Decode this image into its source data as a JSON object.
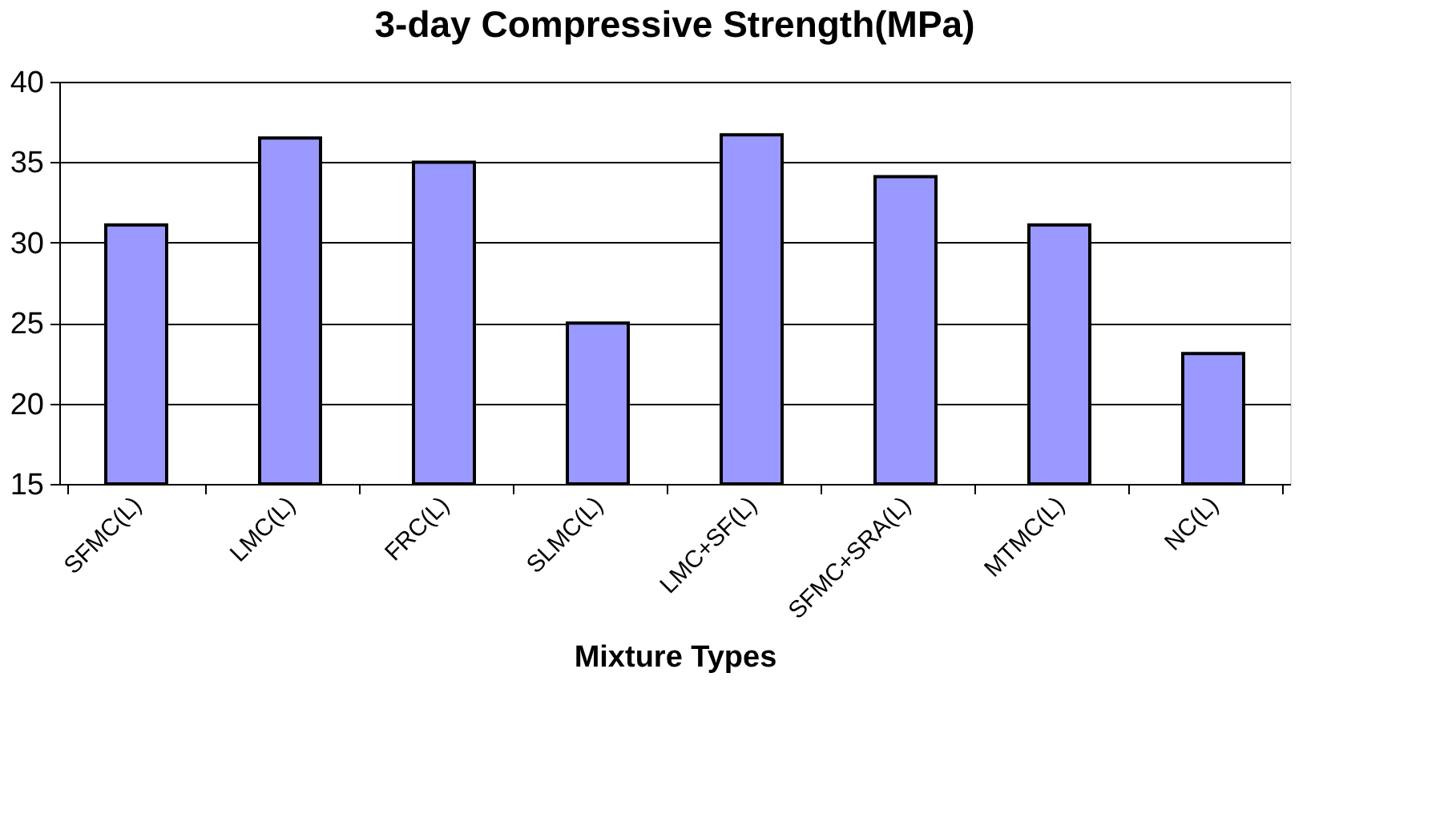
{
  "chart_data": {
    "type": "bar",
    "title": "3-day Compressive Strength(MPa)",
    "xlabel": "Mixture Types",
    "categories": [
      "SFMC(L)",
      "LMC(L)",
      "FRC(L)",
      "SLMC(L)",
      "LMC+SF(L)",
      "SFMC+SRA(L)",
      "MTMC(L)",
      "NC(L)"
    ],
    "values": [
      31.1,
      36.5,
      35.0,
      25.0,
      36.7,
      34.1,
      31.1,
      23.1
    ],
    "color": "#9999ff",
    "ylim": [
      15,
      40
    ],
    "yticks": [
      15,
      20,
      25,
      30,
      35,
      40
    ],
    "grid": "y"
  }
}
